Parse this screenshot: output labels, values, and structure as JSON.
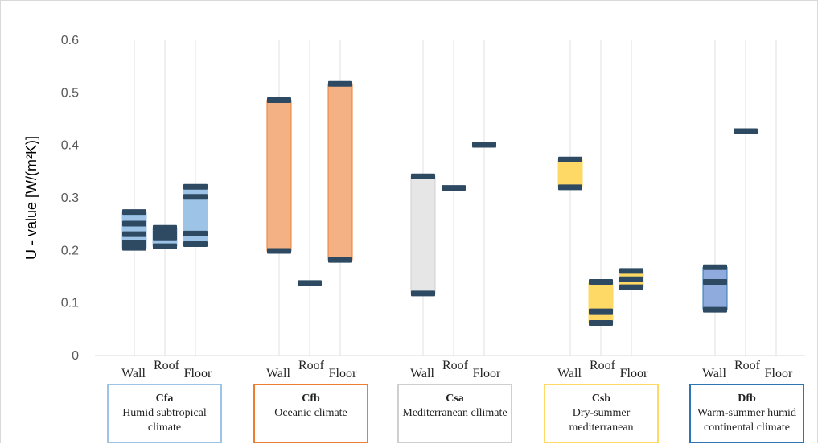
{
  "chart_data": {
    "type": "floating-bar",
    "ylabel": "U - value [W/(m²K)]",
    "ylim": [
      0,
      0.6
    ],
    "yticks": [
      "0",
      "0.1",
      "0.2",
      "0.3",
      "0.4",
      "0.5",
      "0.6"
    ],
    "grid": "vertical only",
    "categories": [
      "Wall",
      "Roof",
      "Floor"
    ],
    "groups": [
      {
        "code": "Cfa",
        "description": "Humid subtropical climate",
        "fill": "#9dc3e6",
        "border": "#9dc3e6",
        "elements": [
          {
            "category": "Wall",
            "range": [
              0.205,
              0.273
            ],
            "values": [
              0.205,
              0.215,
              0.231,
              0.251,
              0.273
            ]
          },
          {
            "category": "Roof",
            "range": [
              0.208,
              0.243
            ],
            "values": [
              0.208,
              0.223,
              0.233,
              0.243
            ]
          },
          {
            "category": "Floor",
            "range": [
              0.212,
              0.321
            ],
            "values": [
              0.212,
              0.232,
              0.302,
              0.321
            ]
          }
        ]
      },
      {
        "code": "Cfb",
        "description": "Oceanic climate",
        "fill": "#f4b183",
        "border": "#ed7d31",
        "elements": [
          {
            "category": "Wall",
            "range": [
              0.199,
              0.486
            ],
            "values": [
              0.199,
              0.486
            ]
          },
          {
            "category": "Roof",
            "range": [
              0.138,
              0.138
            ],
            "values": [
              0.138
            ]
          },
          {
            "category": "Floor",
            "range": [
              0.182,
              0.517
            ],
            "values": [
              0.182,
              0.517
            ]
          }
        ]
      },
      {
        "code": "Csa",
        "description": "Mediterranean cllimate",
        "fill": "#e7e6e6",
        "border": "#d0cece",
        "elements": [
          {
            "category": "Wall",
            "range": [
              0.118,
              0.341
            ],
            "values": [
              0.118,
              0.341
            ]
          },
          {
            "category": "Roof",
            "range": [
              0.319,
              0.319
            ],
            "values": [
              0.319
            ]
          },
          {
            "category": "Floor",
            "range": [
              0.401,
              0.401
            ],
            "values": [
              0.401
            ]
          }
        ]
      },
      {
        "code": "Csb",
        "description": "Dry-summer mediterranean",
        "fill": "#ffd966",
        "border": "#ffd966",
        "elements": [
          {
            "category": "Wall",
            "range": [
              0.32,
              0.373
            ],
            "values": [
              0.32,
              0.373
            ]
          },
          {
            "category": "Roof",
            "range": [
              0.062,
              0.14
            ],
            "values": [
              0.062,
              0.084,
              0.14
            ]
          },
          {
            "category": "Floor",
            "range": [
              0.13,
              0.161
            ],
            "values": [
              0.13,
              0.145,
              0.161
            ]
          }
        ]
      },
      {
        "code": "Dfb",
        "description": "Warm-summer humid continental climate",
        "fill": "#8faadc",
        "border": "#2e75b6",
        "elements": [
          {
            "category": "Wall",
            "range": [
              0.087,
              0.168
            ],
            "values": [
              0.087,
              0.14,
              0.168
            ]
          },
          {
            "category": "Roof",
            "range": [
              0.427,
              0.427
            ],
            "values": [
              0.427
            ]
          },
          {
            "category": "Floor",
            "range": null,
            "values": []
          }
        ]
      }
    ],
    "marker_color": "#2e4a62"
  }
}
